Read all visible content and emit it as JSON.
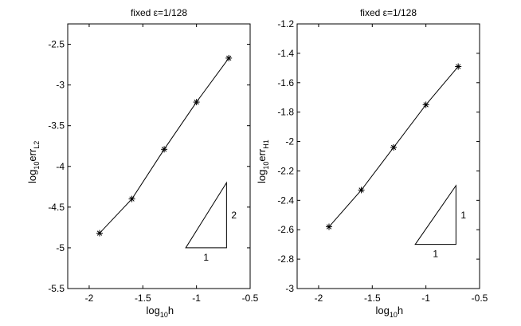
{
  "chart_data": [
    {
      "type": "line",
      "title": "fixed ε=1/128",
      "xlabel": {
        "base": "log",
        "sub": "10",
        "main": "h"
      },
      "ylabel": {
        "base": "log",
        "sub": "10",
        "main": "err",
        "sub2": "L2"
      },
      "xlim": [
        -2.2,
        -0.5
      ],
      "ylim": [
        -5.5,
        -2.25
      ],
      "xticks": [
        -2,
        -1.5,
        -1,
        -0.5
      ],
      "xtick_labels": [
        "-2",
        "-1.5",
        "-1",
        "-0.5"
      ],
      "yticks": [
        -5.5,
        -5,
        -4.5,
        -4,
        -3.5,
        -3,
        -2.5
      ],
      "ytick_labels": [
        "-5.5",
        "-5",
        "-4.5",
        "-4",
        "-3.5",
        "-3",
        "-2.5"
      ],
      "marker": "*",
      "grid": false,
      "series": [
        {
          "x": [
            -1.903,
            -1.602,
            -1.301,
            -1.0,
            -0.699
          ],
          "y": [
            -4.82,
            -4.4,
            -3.79,
            -3.21,
            -2.67
          ]
        }
      ],
      "slope_triangle": {
        "x0": -1.1,
        "x1": -0.72,
        "ybase": -5.0,
        "ytop": -4.2,
        "run_label": "1",
        "rise_label": "2"
      }
    },
    {
      "type": "line",
      "title": "fixed ε=1/128",
      "xlabel": {
        "base": "log",
        "sub": "10",
        "main": "h"
      },
      "ylabel": {
        "base": "log",
        "sub": "10",
        "main": "err",
        "sub2": "H1"
      },
      "xlim": [
        -2.2,
        -0.5
      ],
      "ylim": [
        -3.0,
        -1.2
      ],
      "xticks": [
        -2,
        -1.5,
        -1,
        -0.5
      ],
      "xtick_labels": [
        "-2",
        "-1.5",
        "-1",
        "-0.5"
      ],
      "yticks": [
        -3.0,
        -2.8,
        -2.6,
        -2.4,
        -2.2,
        -2.0,
        -1.8,
        -1.6,
        -1.4,
        -1.2
      ],
      "ytick_labels": [
        "-3",
        "-2.8",
        "-2.6",
        "-2.4",
        "-2.2",
        "-2",
        "-1.8",
        "-1.6",
        "-1.4",
        "-1.2"
      ],
      "marker": "*",
      "grid": false,
      "series": [
        {
          "x": [
            -1.903,
            -1.602,
            -1.301,
            -1.0,
            -0.699
          ],
          "y": [
            -2.58,
            -2.33,
            -2.04,
            -1.75,
            -1.49
          ]
        }
      ],
      "slope_triangle": {
        "x0": -1.1,
        "x1": -0.72,
        "ybase": -2.7,
        "ytop": -2.3,
        "run_label": "1",
        "rise_label": "1"
      }
    }
  ]
}
